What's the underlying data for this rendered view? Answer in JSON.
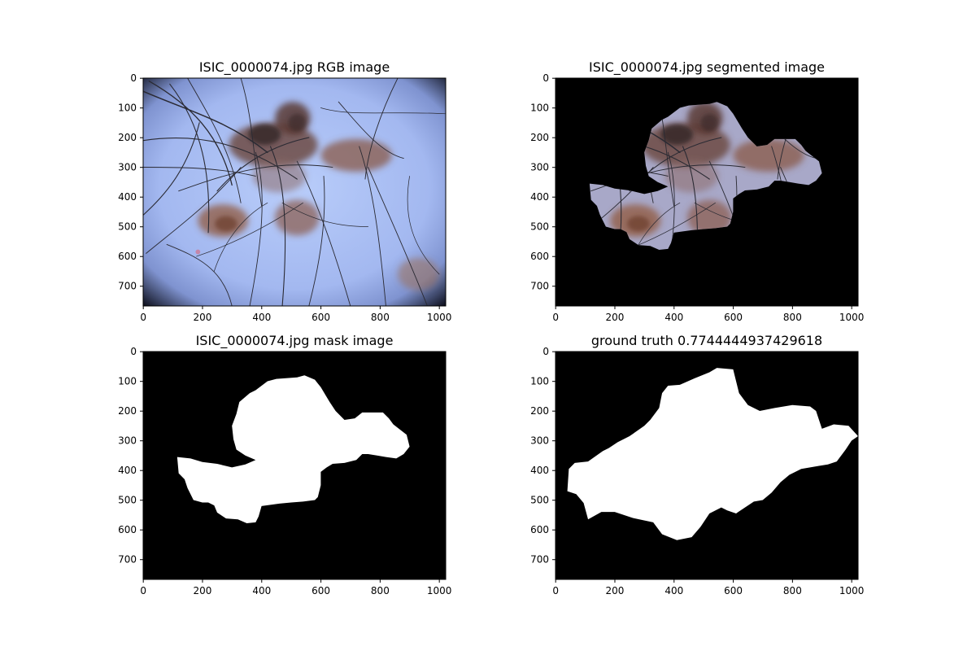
{
  "figure": {
    "panels": [
      {
        "id": "rgb",
        "title": "ISIC_0000074.jpg RGB image",
        "kind": "dermoscopy photograph",
        "xticks": [
          "0",
          "200",
          "400",
          "600",
          "800",
          "1000"
        ],
        "yticks": [
          "0",
          "100",
          "200",
          "300",
          "400",
          "500",
          "600",
          "700"
        ]
      },
      {
        "id": "segmented",
        "title": "ISIC_0000074.jpg segmented image",
        "kind": "lesion cut-out on black",
        "xticks": [
          "0",
          "200",
          "400",
          "600",
          "800",
          "1000"
        ],
        "yticks": [
          "0",
          "100",
          "200",
          "300",
          "400",
          "500",
          "600",
          "700"
        ]
      },
      {
        "id": "mask",
        "title": "ISIC_0000074.jpg mask image",
        "kind": "binary mask",
        "xticks": [
          "0",
          "200",
          "400",
          "600",
          "800",
          "1000"
        ],
        "yticks": [
          "0",
          "100",
          "200",
          "300",
          "400",
          "500",
          "600",
          "700"
        ]
      },
      {
        "id": "truth",
        "title": "ground truth 0.7744444937429618",
        "kind": "binary mask",
        "xticks": [
          "0",
          "200",
          "400",
          "600",
          "800",
          "1000"
        ],
        "yticks": [
          "0",
          "100",
          "200",
          "300",
          "400",
          "500",
          "600",
          "700"
        ]
      }
    ],
    "image_extent": {
      "width": 1022,
      "height": 767
    },
    "colors": {
      "background": "#000000",
      "mask": "#ffffff",
      "skin": "#a7bdf3",
      "lesion": "#6a4433"
    },
    "predicted_mask_outline": [
      [
        115,
        355
      ],
      [
        160,
        360
      ],
      [
        200,
        372
      ],
      [
        250,
        378
      ],
      [
        300,
        390
      ],
      [
        345,
        380
      ],
      [
        380,
        365
      ],
      [
        345,
        350
      ],
      [
        315,
        330
      ],
      [
        305,
        295
      ],
      [
        300,
        250
      ],
      [
        315,
        210
      ],
      [
        325,
        170
      ],
      [
        360,
        140
      ],
      [
        380,
        130
      ],
      [
        420,
        100
      ],
      [
        450,
        92
      ],
      [
        520,
        87
      ],
      [
        545,
        80
      ],
      [
        580,
        95
      ],
      [
        600,
        120
      ],
      [
        630,
        170
      ],
      [
        650,
        200
      ],
      [
        680,
        230
      ],
      [
        715,
        225
      ],
      [
        740,
        205
      ],
      [
        780,
        205
      ],
      [
        810,
        205
      ],
      [
        830,
        225
      ],
      [
        845,
        245
      ],
      [
        890,
        280
      ],
      [
        900,
        320
      ],
      [
        880,
        345
      ],
      [
        855,
        360
      ],
      [
        820,
        355
      ],
      [
        790,
        350
      ],
      [
        760,
        345
      ],
      [
        740,
        345
      ],
      [
        720,
        365
      ],
      [
        680,
        375
      ],
      [
        640,
        378
      ],
      [
        620,
        390
      ],
      [
        600,
        405
      ],
      [
        600,
        450
      ],
      [
        590,
        490
      ],
      [
        580,
        500
      ],
      [
        540,
        505
      ],
      [
        500,
        508
      ],
      [
        460,
        512
      ],
      [
        400,
        520
      ],
      [
        390,
        555
      ],
      [
        380,
        575
      ],
      [
        350,
        578
      ],
      [
        320,
        565
      ],
      [
        280,
        562
      ],
      [
        250,
        542
      ],
      [
        240,
        518
      ],
      [
        220,
        508
      ],
      [
        200,
        508
      ],
      [
        170,
        500
      ],
      [
        150,
        460
      ],
      [
        140,
        430
      ],
      [
        120,
        410
      ]
    ],
    "ground_truth_outline": [
      [
        45,
        395
      ],
      [
        65,
        375
      ],
      [
        110,
        370
      ],
      [
        160,
        335
      ],
      [
        180,
        325
      ],
      [
        210,
        305
      ],
      [
        250,
        285
      ],
      [
        300,
        250
      ],
      [
        320,
        230
      ],
      [
        350,
        190
      ],
      [
        360,
        140
      ],
      [
        380,
        115
      ],
      [
        420,
        112
      ],
      [
        470,
        90
      ],
      [
        520,
        70
      ],
      [
        545,
        55
      ],
      [
        600,
        60
      ],
      [
        620,
        140
      ],
      [
        650,
        180
      ],
      [
        690,
        200
      ],
      [
        740,
        190
      ],
      [
        800,
        180
      ],
      [
        860,
        185
      ],
      [
        880,
        200
      ],
      [
        900,
        260
      ],
      [
        940,
        245
      ],
      [
        990,
        250
      ],
      [
        1022,
        285
      ],
      [
        1000,
        300
      ],
      [
        980,
        330
      ],
      [
        950,
        370
      ],
      [
        920,
        380
      ],
      [
        890,
        385
      ],
      [
        830,
        395
      ],
      [
        790,
        415
      ],
      [
        760,
        440
      ],
      [
        730,
        475
      ],
      [
        700,
        500
      ],
      [
        670,
        505
      ],
      [
        610,
        545
      ],
      [
        580,
        535
      ],
      [
        560,
        525
      ],
      [
        520,
        545
      ],
      [
        490,
        590
      ],
      [
        460,
        625
      ],
      [
        410,
        635
      ],
      [
        360,
        615
      ],
      [
        330,
        575
      ],
      [
        260,
        560
      ],
      [
        200,
        540
      ],
      [
        155,
        540
      ],
      [
        110,
        565
      ],
      [
        95,
        510
      ],
      [
        70,
        480
      ],
      [
        40,
        470
      ]
    ]
  }
}
